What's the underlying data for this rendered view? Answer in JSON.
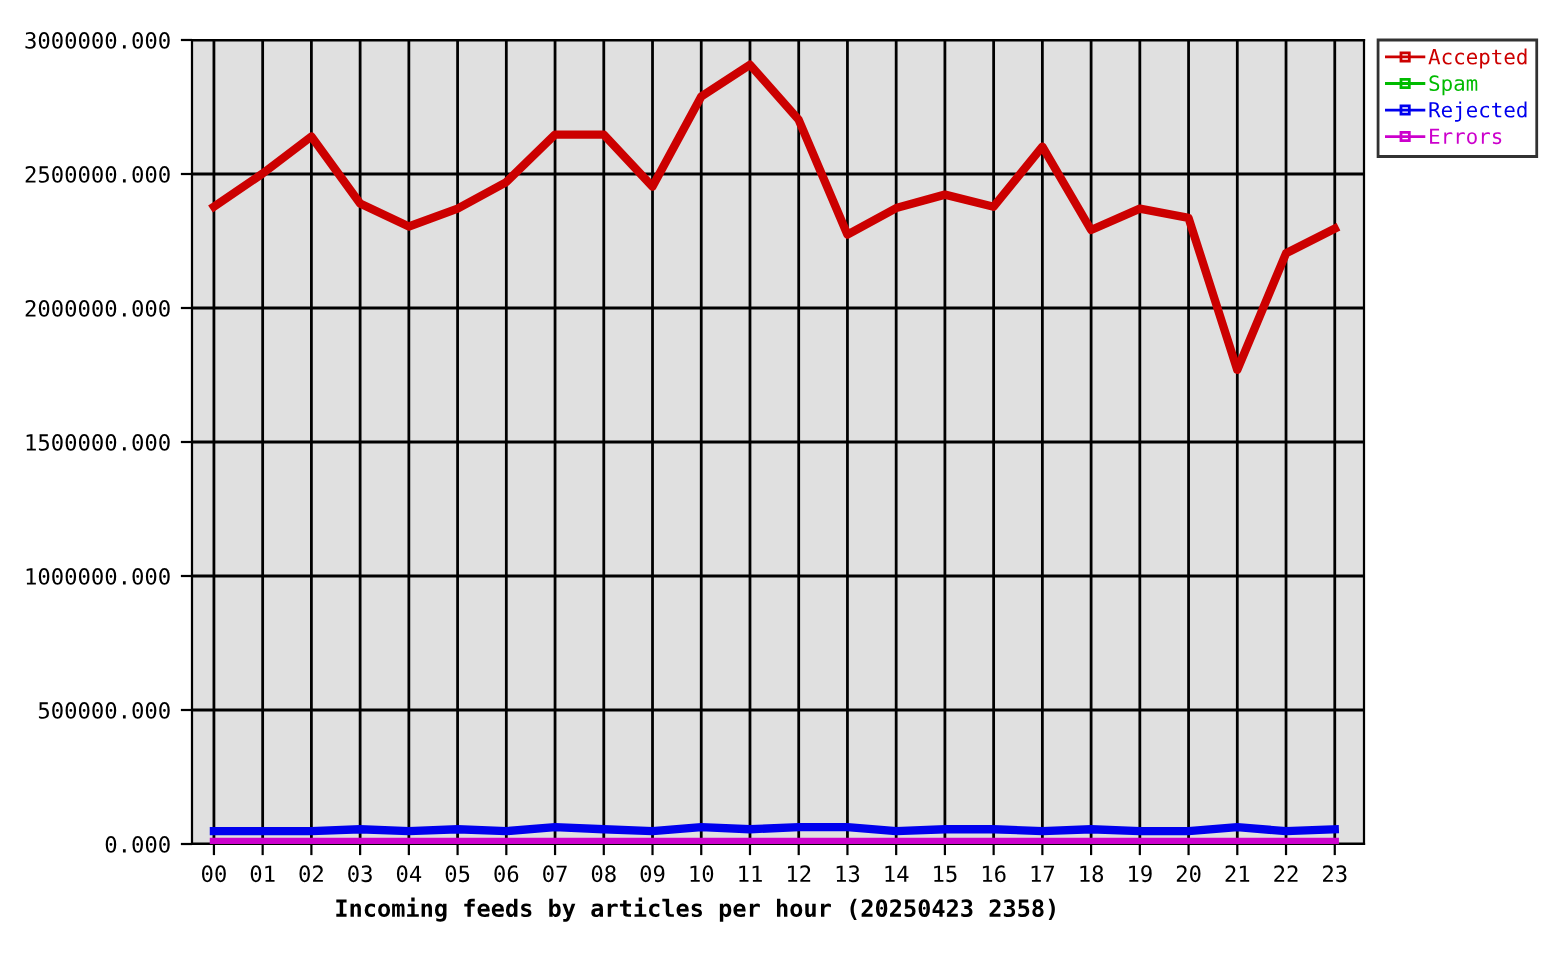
{
  "chart_data": {
    "type": "line",
    "xlabel": "Incoming feeds by articles per hour (20250423 2358)",
    "categories": [
      "00",
      "01",
      "02",
      "03",
      "04",
      "05",
      "06",
      "07",
      "08",
      "09",
      "10",
      "11",
      "12",
      "13",
      "14",
      "15",
      "16",
      "17",
      "18",
      "19",
      "20",
      "21",
      "22",
      "23"
    ],
    "series": [
      {
        "name": "Accepted",
        "color": "#cc0000",
        "values": [
          2378000,
          2502000,
          2640000,
          2390000,
          2304000,
          2371000,
          2470000,
          2647000,
          2647000,
          2453000,
          2789000,
          2908000,
          2702000,
          2274000,
          2373000,
          2423000,
          2378000,
          2602000,
          2291000,
          2371000,
          2336000,
          1769000,
          2204000,
          2296000
        ]
      },
      {
        "name": "Spam",
        "color": "#00bb00",
        "values": [
          null,
          null,
          null,
          null,
          null,
          null,
          null,
          null,
          null,
          null,
          null,
          null,
          null,
          null,
          null,
          null,
          null,
          null,
          null,
          null,
          null,
          null,
          null,
          null
        ]
      },
      {
        "name": "Rejected",
        "color": "#0000ee",
        "values": [
          48000,
          48000,
          48000,
          55000,
          48000,
          55000,
          48000,
          63000,
          55000,
          48000,
          63000,
          55000,
          63000,
          63000,
          48000,
          55000,
          55000,
          48000,
          55000,
          48000,
          48000,
          63000,
          48000,
          55000
        ]
      },
      {
        "name": "Errors",
        "color": "#cc00cc",
        "values": [
          8000,
          8000,
          8000,
          8000,
          8000,
          8000,
          8000,
          8000,
          8000,
          8000,
          8000,
          8000,
          8000,
          8000,
          8000,
          8000,
          8000,
          8000,
          8000,
          8000,
          8000,
          8000,
          8000,
          8000
        ]
      }
    ],
    "ylim": [
      0,
      3000000
    ],
    "yticks": [
      {
        "value": 0,
        "label": "0.000"
      },
      {
        "value": 500000,
        "label": "500000.000"
      },
      {
        "value": 1000000,
        "label": "1000000.000"
      },
      {
        "value": 1500000,
        "label": "1500000.000"
      },
      {
        "value": 2000000,
        "label": "2000000.000"
      },
      {
        "value": 2500000,
        "label": "2500000.000"
      },
      {
        "value": 3000000,
        "label": "3000000.000"
      }
    ],
    "grid": true,
    "legend": "right",
    "marker": "none",
    "line_style": "solid"
  }
}
